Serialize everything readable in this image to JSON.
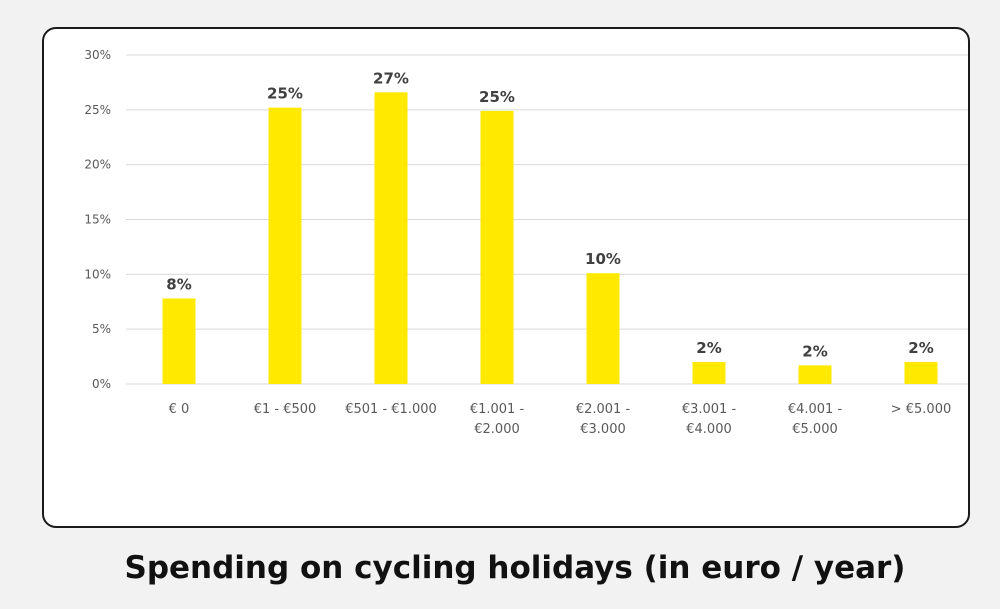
{
  "caption": "Spending on cycling holidays (in euro / year)",
  "colors": {
    "bar": "#ffe900",
    "grid": "#d9d9d9",
    "tick_text": "#595959",
    "label_text": "#404040"
  },
  "chart_data": {
    "type": "bar",
    "categories": [
      [
        "€ 0"
      ],
      [
        "€1 - €500"
      ],
      [
        "€501 - €1.000"
      ],
      [
        "€1.001 -",
        "€2.000"
      ],
      [
        "€2.001 -",
        "€3.000"
      ],
      [
        "€3.001 -",
        "€4.000"
      ],
      [
        "€4.001 -",
        "€5.000"
      ],
      [
        "> €5.000"
      ]
    ],
    "values": [
      7.8,
      25.2,
      26.6,
      24.9,
      10.1,
      2.0,
      1.7,
      2.0
    ],
    "data_labels": [
      "8%",
      "25%",
      "27%",
      "25%",
      "10%",
      "2%",
      "2%",
      "2%"
    ],
    "yticks": [
      0,
      5,
      10,
      15,
      20,
      25,
      30
    ],
    "ytick_labels": [
      "0%",
      "5%",
      "10%",
      "15%",
      "20%",
      "25%",
      "30%"
    ],
    "ylim": [
      0,
      30
    ],
    "grid": true,
    "legend": "none"
  }
}
